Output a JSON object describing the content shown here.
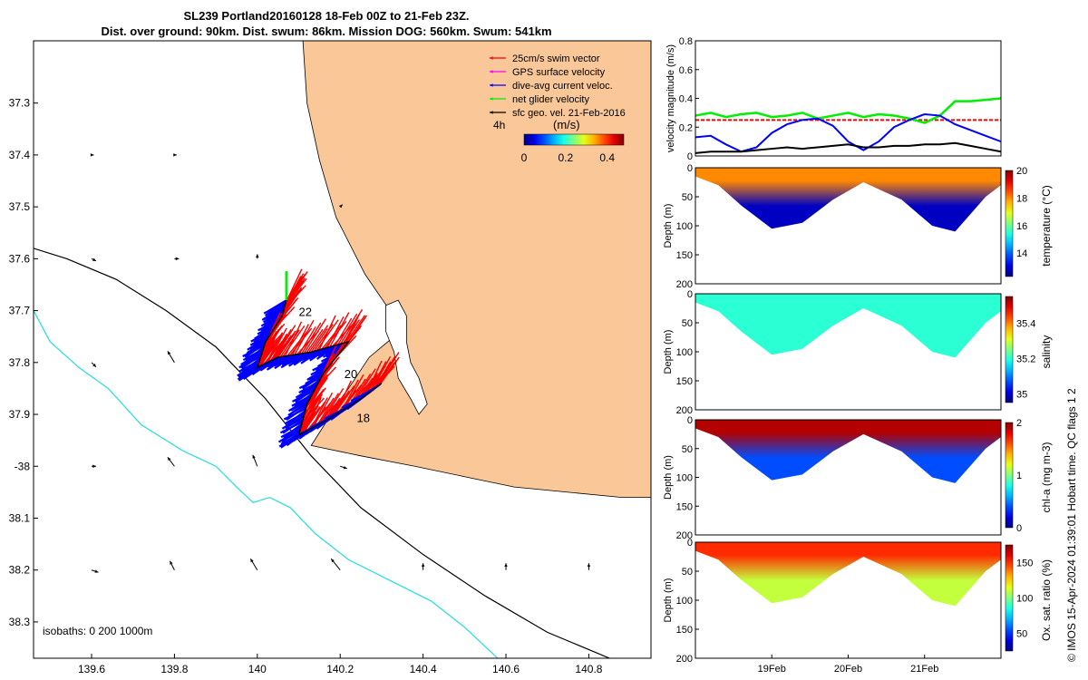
{
  "header": {
    "title_line1": "SL239 Portland20160128 18-Feb 00Z to 21-Feb 23Z.",
    "title_line2": "Dist. over ground: 90km. Dist. swum: 86km. Mission DOG: 560km. Swum: 541km"
  },
  "footer": {
    "stamp": "© IMOS 15-Apr-2024 01:39:01 Hobart time. QC flags 1  2"
  },
  "colors": {
    "land": "#fac898",
    "swim_vector": "#ff0000",
    "gps_velocity": "#ff00ff",
    "dive_avg_current": "#0000ff",
    "net_glider": "#00ee00",
    "sfc_geo": "#000000",
    "isobath_200": "#000000",
    "isobath_1000": "#22dddd"
  },
  "chart_data": [
    {
      "type": "map",
      "xlim": [
        139.46,
        140.95
      ],
      "ylim": [
        -38.37,
        -37.18
      ],
      "x_ticks": [
        139.6,
        139.8,
        140,
        140.2,
        140.4,
        140.6,
        140.8
      ],
      "x_tick_labels": [
        "139.6",
        "139.8",
        "140",
        "140.2",
        "140.4",
        "140.6",
        "140.8"
      ],
      "y_ticks": [
        -37.3,
        -37.4,
        -37.5,
        -37.6,
        -37.7,
        -37.8,
        -37.9,
        -38,
        -38.1,
        -38.2,
        -38.3
      ],
      "y_tick_labels": [
        "37.3",
        "37.4",
        "37.5",
        "37.6",
        "37.7",
        "37.8",
        "37.9",
        "-38",
        "38.1",
        "38.2",
        "38.3"
      ],
      "legend": {
        "placement": "top-right",
        "entries": [
          {
            "label": "25cm/s swim vector",
            "color": "#ff0000"
          },
          {
            "label": "GPS surface velocity",
            "color": "#ff00ff"
          },
          {
            "label": "dive-avg current veloc.",
            "color": "#0000ff"
          },
          {
            "label": "net glider velocity",
            "color": "#00ee00"
          },
          {
            "label": "sfc geo. vel. 21-Feb-2016",
            "color": "#000000"
          }
        ],
        "scale_label": "4h",
        "colorbar_title": "(m/s)",
        "colorbar_ticks": [
          "0",
          "0.2",
          "0.4"
        ],
        "colorbar_range": [
          0,
          0.48
        ]
      },
      "isobaths_label": "isobaths: 0   200  1000m",
      "coastline": [
        [
          140.11,
          -37.18
        ],
        [
          140.12,
          -37.3
        ],
        [
          140.15,
          -37.41
        ],
        [
          140.19,
          -37.52
        ],
        [
          140.26,
          -37.63
        ],
        [
          140.32,
          -37.7
        ],
        [
          140.35,
          -37.72
        ],
        [
          140.33,
          -37.75
        ],
        [
          140.27,
          -37.79
        ],
        [
          140.22,
          -37.85
        ],
        [
          140.17,
          -37.91
        ],
        [
          140.13,
          -37.96
        ],
        [
          140.25,
          -37.98
        ],
        [
          140.38,
          -38.0
        ],
        [
          140.5,
          -38.02
        ],
        [
          140.62,
          -38.04
        ],
        [
          140.75,
          -38.05
        ],
        [
          140.88,
          -38.06
        ],
        [
          140.95,
          -38.06
        ]
      ],
      "island": [
        [
          140.31,
          -37.69
        ],
        [
          140.34,
          -37.68
        ],
        [
          140.36,
          -37.71
        ],
        [
          140.36,
          -37.76
        ],
        [
          140.37,
          -37.8
        ],
        [
          140.39,
          -37.83
        ],
        [
          140.41,
          -37.88
        ],
        [
          140.39,
          -37.9
        ],
        [
          140.37,
          -37.87
        ],
        [
          140.34,
          -37.83
        ],
        [
          140.33,
          -37.78
        ],
        [
          140.31,
          -37.74
        ]
      ],
      "isobath_200": [
        [
          139.46,
          -37.58
        ],
        [
          139.54,
          -37.6
        ],
        [
          139.66,
          -37.64
        ],
        [
          139.78,
          -37.7
        ],
        [
          139.9,
          -37.77
        ],
        [
          140.02,
          -37.87
        ],
        [
          140.13,
          -37.98
        ],
        [
          140.25,
          -38.08
        ],
        [
          140.4,
          -38.17
        ],
        [
          140.55,
          -38.25
        ],
        [
          140.7,
          -38.32
        ],
        [
          140.85,
          -38.37
        ]
      ],
      "isobath_1000": [
        [
          139.46,
          -37.7
        ],
        [
          139.5,
          -37.76
        ],
        [
          139.57,
          -37.81
        ],
        [
          139.64,
          -37.85
        ],
        [
          139.72,
          -37.92
        ],
        [
          139.82,
          -37.97
        ],
        [
          139.9,
          -38.0
        ],
        [
          139.95,
          -38.04
        ],
        [
          139.99,
          -38.07
        ],
        [
          140.03,
          -38.06
        ],
        [
          140.08,
          -38.08
        ],
        [
          140.14,
          -38.13
        ],
        [
          140.22,
          -38.18
        ],
        [
          140.32,
          -38.22
        ],
        [
          140.42,
          -38.26
        ],
        [
          140.5,
          -38.31
        ],
        [
          140.58,
          -38.37
        ]
      ],
      "glider_track": [
        [
          140.07,
          -37.68
        ],
        [
          140.06,
          -37.71
        ],
        [
          140.02,
          -37.76
        ],
        [
          140.0,
          -37.81
        ],
        [
          140.05,
          -37.79
        ],
        [
          140.13,
          -37.78
        ],
        [
          140.22,
          -37.76
        ],
        [
          140.16,
          -37.82
        ],
        [
          140.12,
          -37.88
        ],
        [
          140.1,
          -37.94
        ],
        [
          140.17,
          -37.91
        ],
        [
          140.25,
          -37.87
        ],
        [
          140.3,
          -37.84
        ]
      ],
      "day_labels": [
        {
          "text": "22",
          "lon": 140.1,
          "lat": -37.71
        },
        {
          "text": "20",
          "lon": 140.21,
          "lat": -37.83
        },
        {
          "text": "18",
          "lon": 140.24,
          "lat": -37.915
        }
      ],
      "net_velocity_arrow": {
        "lon": 140.07,
        "lat": -37.68,
        "u": 0.0,
        "v": 0.4
      },
      "sfc_geo_vectors": [
        {
          "lon": 139.6,
          "lat": -37.4,
          "u": 0.01,
          "v": 0.0
        },
        {
          "lon": 139.8,
          "lat": -37.4,
          "u": 0.01,
          "v": 0.0
        },
        {
          "lon": 139.6,
          "lat": -37.6,
          "u": 0.02,
          "v": -0.01
        },
        {
          "lon": 139.8,
          "lat": -37.6,
          "u": 0.02,
          "v": 0.0
        },
        {
          "lon": 140.0,
          "lat": -37.6,
          "u": 0.0,
          "v": 0.02
        },
        {
          "lon": 140.2,
          "lat": -37.5,
          "u": 0.01,
          "v": 0.01
        },
        {
          "lon": 139.6,
          "lat": -37.8,
          "u": 0.02,
          "v": -0.02
        },
        {
          "lon": 139.8,
          "lat": -37.8,
          "u": -0.03,
          "v": 0.05
        },
        {
          "lon": 139.6,
          "lat": -38.0,
          "u": 0.02,
          "v": 0.0
        },
        {
          "lon": 139.8,
          "lat": -38.0,
          "u": -0.03,
          "v": 0.04
        },
        {
          "lon": 140.0,
          "lat": -38.0,
          "u": -0.02,
          "v": 0.05
        },
        {
          "lon": 140.2,
          "lat": -38.0,
          "u": 0.03,
          "v": -0.01
        },
        {
          "lon": 139.6,
          "lat": -38.2,
          "u": 0.03,
          "v": -0.01
        },
        {
          "lon": 139.8,
          "lat": -38.2,
          "u": -0.02,
          "v": 0.04
        },
        {
          "lon": 140.0,
          "lat": -38.2,
          "u": -0.03,
          "v": 0.05
        },
        {
          "lon": 140.2,
          "lat": -38.2,
          "u": -0.04,
          "v": 0.05
        },
        {
          "lon": 140.4,
          "lat": -38.2,
          "u": 0.0,
          "v": 0.03
        },
        {
          "lon": 140.6,
          "lat": -38.2,
          "u": 0.0,
          "v": 0.03
        },
        {
          "lon": 140.8,
          "lat": -38.2,
          "u": 0.0,
          "v": 0.03
        }
      ]
    },
    {
      "type": "line",
      "ylabel": "velocity magnitude (m/s)",
      "xlim": [
        18.0,
        22.0
      ],
      "ylim": [
        0,
        0.8
      ],
      "y_ticks": [
        0,
        0.2,
        0.4,
        0.6,
        0.8
      ],
      "y_tick_labels": [
        "0",
        "0.2",
        "0.4",
        "0.6",
        "0.8"
      ],
      "series": [
        {
          "color": "#ff0000",
          "style": "dashed",
          "x": [
            18.0,
            22.0
          ],
          "values": [
            0.25,
            0.25
          ]
        },
        {
          "color": "#00ee00",
          "x": [
            18.0,
            18.2,
            18.4,
            18.6,
            18.8,
            19.0,
            19.2,
            19.4,
            19.6,
            19.8,
            20.0,
            20.2,
            20.4,
            20.6,
            20.8,
            21.0,
            21.2,
            21.4,
            21.6,
            21.8,
            22.0
          ],
          "values": [
            0.28,
            0.3,
            0.27,
            0.29,
            0.3,
            0.27,
            0.28,
            0.3,
            0.26,
            0.28,
            0.3,
            0.27,
            0.29,
            0.28,
            0.26,
            0.23,
            0.28,
            0.38,
            0.38,
            0.39,
            0.4
          ]
        },
        {
          "color": "#0000ff",
          "x": [
            18.0,
            18.2,
            18.4,
            18.6,
            18.8,
            19.0,
            19.2,
            19.4,
            19.6,
            19.8,
            20.0,
            20.2,
            20.4,
            20.6,
            20.8,
            21.0,
            21.2,
            21.4,
            21.6,
            21.8,
            22.0
          ],
          "values": [
            0.13,
            0.14,
            0.08,
            0.03,
            0.06,
            0.16,
            0.22,
            0.25,
            0.26,
            0.21,
            0.1,
            0.04,
            0.1,
            0.2,
            0.25,
            0.29,
            0.28,
            0.22,
            0.18,
            0.14,
            0.1
          ]
        },
        {
          "color": "#000000",
          "x": [
            18.0,
            18.2,
            18.4,
            18.6,
            18.8,
            19.0,
            19.2,
            19.4,
            19.6,
            19.8,
            20.0,
            20.2,
            20.4,
            20.6,
            20.8,
            21.0,
            21.2,
            21.4,
            21.6,
            21.8,
            22.0
          ],
          "values": [
            0.02,
            0.03,
            0.03,
            0.03,
            0.04,
            0.05,
            0.06,
            0.05,
            0.06,
            0.07,
            0.08,
            0.06,
            0.06,
            0.07,
            0.07,
            0.08,
            0.08,
            0.09,
            0.07,
            0.05,
            0.03
          ]
        }
      ]
    },
    {
      "type": "heatmap",
      "variable": "temperature",
      "ylabel": "Depth (m)",
      "colorbar_label": "temperature (°C)",
      "colorbar_range": [
        12.3,
        20
      ],
      "colorbar_ticks": [
        14,
        16,
        18,
        20
      ],
      "colorbar_tick_labels": [
        "14",
        "16",
        "18",
        "20"
      ],
      "ylim": [
        0,
        200
      ],
      "y_ticks": [
        0,
        50,
        100,
        150,
        200
      ],
      "y_tick_labels": [
        "0",
        "50",
        "100",
        "150",
        "200"
      ],
      "xlim": [
        18.0,
        22.0
      ],
      "dive_profile": {
        "x": [
          18.0,
          18.3,
          18.6,
          19.0,
          19.4,
          19.8,
          20.2,
          20.7,
          21.1,
          21.4,
          21.8,
          22.0
        ],
        "depth": [
          15,
          30,
          65,
          105,
          95,
          55,
          25,
          55,
          100,
          110,
          50,
          30
        ]
      },
      "surface_value": 18,
      "deep_value": 12.8
    },
    {
      "type": "heatmap",
      "variable": "salinity",
      "ylabel": "Depth (m)",
      "colorbar_label": "salinity",
      "colorbar_range": [
        34.95,
        35.55
      ],
      "colorbar_ticks": [
        35,
        35.2,
        35.4
      ],
      "colorbar_tick_labels": [
        "35",
        "35.2",
        "35.4"
      ],
      "ylim": [
        0,
        200
      ],
      "y_ticks": [
        0,
        50,
        100,
        150,
        200
      ],
      "y_tick_labels": [
        "0",
        "50",
        "100",
        "150",
        "200"
      ],
      "xlim": [
        18.0,
        22.0
      ],
      "dive_profile": {
        "x": [
          18.0,
          18.3,
          18.6,
          19.0,
          19.4,
          19.8,
          20.2,
          20.7,
          21.1,
          21.4,
          21.8,
          22.0
        ],
        "depth": [
          15,
          30,
          65,
          105,
          95,
          55,
          25,
          55,
          100,
          110,
          50,
          30
        ]
      },
      "surface_value": 35.2,
      "deep_value": 35.2
    },
    {
      "type": "heatmap",
      "variable": "chlorophyll",
      "ylabel": "Depth (m)",
      "colorbar_label": "chl-a (mg m-3)",
      "colorbar_range": [
        0,
        2
      ],
      "colorbar_ticks": [
        0,
        1,
        2
      ],
      "colorbar_tick_labels": [
        "0",
        "1",
        "2"
      ],
      "ylim": [
        0,
        200
      ],
      "y_ticks": [
        0,
        50,
        100,
        150,
        200
      ],
      "y_tick_labels": [
        "0",
        "50",
        "100",
        "150",
        "200"
      ],
      "xlim": [
        18.0,
        22.0
      ],
      "dive_profile": {
        "x": [
          18.0,
          18.3,
          18.6,
          19.0,
          19.4,
          19.8,
          20.2,
          20.7,
          21.1,
          21.4,
          21.8,
          22.0
        ],
        "depth": [
          15,
          30,
          65,
          105,
          95,
          55,
          25,
          55,
          100,
          110,
          50,
          30
        ]
      },
      "surface_value": 1.9,
      "deep_value": 0.4
    },
    {
      "type": "heatmap",
      "variable": "oxygen",
      "ylabel": "Depth (m)",
      "colorbar_label": "Ox. sat. ratio (%)",
      "colorbar_range": [
        25,
        175
      ],
      "colorbar_ticks": [
        50,
        100,
        150
      ],
      "colorbar_tick_labels": [
        "50",
        "100",
        "150"
      ],
      "ylim": [
        0,
        200
      ],
      "y_ticks": [
        0,
        50,
        100,
        150,
        200
      ],
      "y_tick_labels": [
        "0",
        "50",
        "100",
        "150",
        "200"
      ],
      "xlim": [
        18.0,
        22.0
      ],
      "x_ticks": [
        19,
        20,
        21
      ],
      "x_tick_labels": [
        "19Feb",
        "20Feb",
        "21Feb"
      ],
      "dive_profile": {
        "x": [
          18.0,
          18.3,
          18.6,
          19.0,
          19.4,
          19.8,
          20.2,
          20.7,
          21.1,
          21.4,
          21.8,
          22.0
        ],
        "depth": [
          15,
          30,
          65,
          105,
          95,
          55,
          25,
          55,
          100,
          110,
          50,
          30
        ]
      },
      "surface_value": 150,
      "deep_value": 110
    }
  ]
}
